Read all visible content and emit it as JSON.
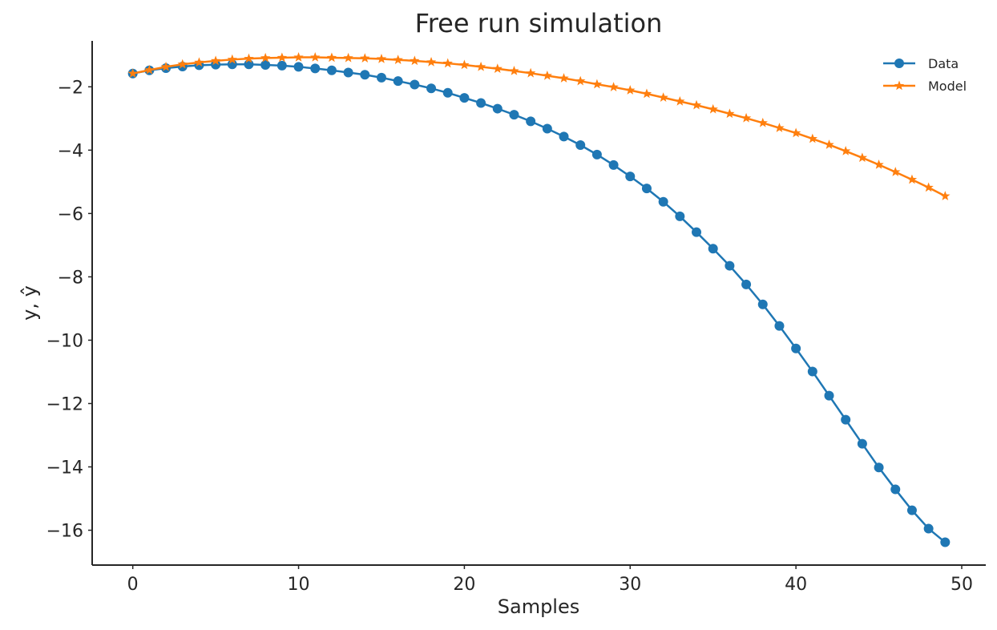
{
  "chart_data": {
    "type": "line",
    "title": "Free run simulation",
    "xlabel": "Samples",
    "ylabel": "y, ŷ",
    "xlim": [
      -2.45,
      51.45
    ],
    "ylim": [
      -17.1,
      -0.55
    ],
    "xticks": [
      0,
      10,
      20,
      30,
      40,
      50
    ],
    "xtick_labels": [
      "0",
      "10",
      "20",
      "30",
      "40",
      "50"
    ],
    "yticks": [
      -2,
      -4,
      -6,
      -8,
      -10,
      -12,
      -14,
      -16
    ],
    "ytick_labels": [
      "−2",
      "−4",
      "−6",
      "−8",
      "−10",
      "−12",
      "−14",
      "−16"
    ],
    "grid": false,
    "legend_position": "top-right",
    "x": [
      0,
      1,
      2,
      3,
      4,
      5,
      6,
      7,
      8,
      9,
      10,
      11,
      12,
      13,
      14,
      15,
      16,
      17,
      18,
      19,
      20,
      21,
      22,
      23,
      24,
      25,
      26,
      27,
      28,
      29,
      30,
      31,
      32,
      33,
      34,
      35,
      36,
      37,
      38,
      39,
      40,
      41,
      42,
      43,
      44,
      45,
      46,
      47,
      48,
      49
    ],
    "series": [
      {
        "name": "Data",
        "color": "#1f77b4",
        "marker": "circle",
        "values": [
          -1.58,
          -1.48,
          -1.41,
          -1.36,
          -1.32,
          -1.3,
          -1.29,
          -1.29,
          -1.31,
          -1.33,
          -1.37,
          -1.42,
          -1.48,
          -1.55,
          -1.62,
          -1.71,
          -1.82,
          -1.93,
          -2.05,
          -2.19,
          -2.35,
          -2.51,
          -2.69,
          -2.88,
          -3.09,
          -3.32,
          -3.57,
          -3.84,
          -4.14,
          -4.47,
          -4.83,
          -5.21,
          -5.63,
          -6.09,
          -6.59,
          -7.11,
          -7.65,
          -8.24,
          -8.87,
          -9.55,
          -10.26,
          -10.99,
          -11.75,
          -12.51,
          -13.27,
          -14.02,
          -14.71,
          -15.37,
          -15.95,
          -16.38
        ]
      },
      {
        "name": "Model",
        "color": "#ff7f0e",
        "marker": "star",
        "values": [
          -1.58,
          -1.47,
          -1.37,
          -1.29,
          -1.23,
          -1.18,
          -1.14,
          -1.11,
          -1.09,
          -1.08,
          -1.07,
          -1.07,
          -1.08,
          -1.09,
          -1.1,
          -1.12,
          -1.15,
          -1.18,
          -1.22,
          -1.26,
          -1.31,
          -1.37,
          -1.43,
          -1.5,
          -1.57,
          -1.65,
          -1.73,
          -1.82,
          -1.92,
          -2.01,
          -2.11,
          -2.22,
          -2.34,
          -2.46,
          -2.58,
          -2.71,
          -2.85,
          -2.99,
          -3.14,
          -3.3,
          -3.46,
          -3.64,
          -3.83,
          -4.03,
          -4.24,
          -4.46,
          -4.69,
          -4.93,
          -5.18,
          -5.45
        ]
      }
    ]
  }
}
